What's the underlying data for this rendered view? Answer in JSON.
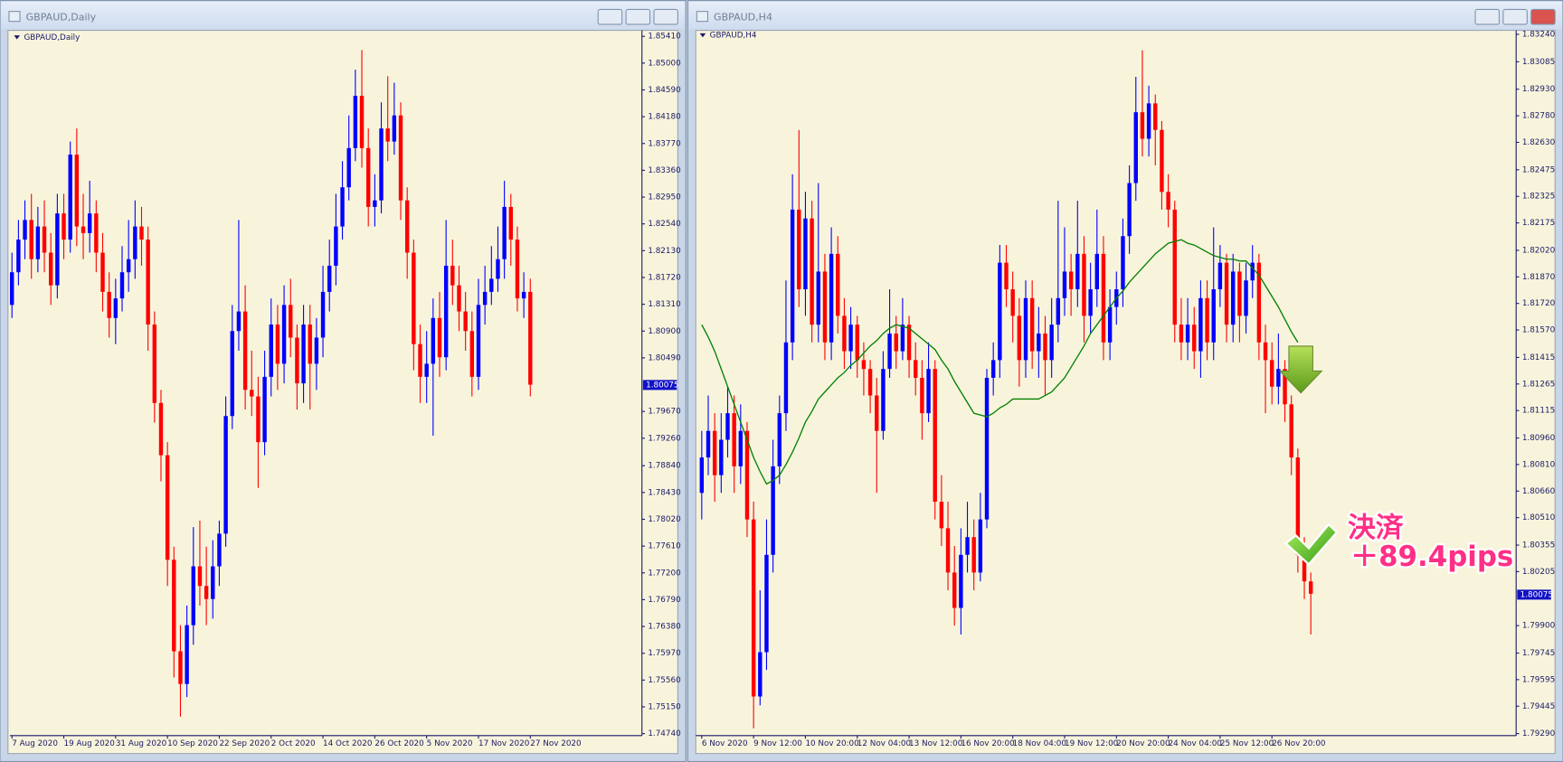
{
  "chart_data": [
    {
      "type": "candlestick",
      "window_title": "GBPAUD,Daily",
      "title": "GBPAUD,Daily",
      "up_color": "#0000ff",
      "down_color": "#ff0000",
      "open": [
        1.813,
        1.818,
        1.823,
        1.826,
        1.82,
        1.825,
        1.821,
        1.816,
        1.827,
        1.823,
        1.836,
        1.825,
        1.824,
        1.827,
        1.821,
        1.815,
        1.811,
        1.814,
        1.818,
        1.82,
        1.825,
        1.823,
        1.81,
        1.798,
        1.79,
        1.774,
        1.76,
        1.755,
        1.764,
        1.773,
        1.77,
        1.768,
        1.773,
        1.778,
        1.796,
        1.809,
        1.812,
        1.8,
        1.799,
        1.792,
        1.802,
        1.81,
        1.804,
        1.813,
        1.808,
        1.801,
        1.81,
        1.804,
        1.808,
        1.815,
        1.819,
        1.825,
        1.831,
        1.837,
        1.845,
        1.837,
        1.828,
        1.829,
        1.84,
        1.838,
        1.842,
        1.829,
        1.821,
        1.807,
        1.802,
        1.804,
        1.811,
        1.805,
        1.819,
        1.816,
        1.812,
        1.809,
        1.802,
        1.813,
        1.815,
        1.817,
        1.82,
        1.828,
        1.823,
        1.814,
        1.815
      ],
      "high": [
        1.821,
        1.826,
        1.829,
        1.83,
        1.828,
        1.829,
        1.824,
        1.83,
        1.83,
        1.838,
        1.84,
        1.83,
        1.832,
        1.829,
        1.824,
        1.818,
        1.817,
        1.822,
        1.826,
        1.829,
        1.828,
        1.825,
        1.812,
        1.8,
        1.792,
        1.776,
        1.764,
        1.767,
        1.779,
        1.78,
        1.776,
        1.777,
        1.78,
        1.799,
        1.813,
        1.826,
        1.816,
        1.806,
        1.802,
        1.806,
        1.814,
        1.813,
        1.816,
        1.817,
        1.81,
        1.813,
        1.813,
        1.811,
        1.819,
        1.823,
        1.83,
        1.835,
        1.842,
        1.849,
        1.852,
        1.84,
        1.833,
        1.844,
        1.848,
        1.847,
        1.844,
        1.831,
        1.823,
        1.81,
        1.809,
        1.814,
        1.815,
        1.826,
        1.823,
        1.819,
        1.815,
        1.812,
        1.817,
        1.819,
        1.822,
        1.825,
        1.832,
        1.83,
        1.825,
        1.818,
        1.817
      ],
      "low": [
        1.811,
        1.816,
        1.82,
        1.817,
        1.818,
        1.818,
        1.813,
        1.814,
        1.82,
        1.821,
        1.822,
        1.82,
        1.821,
        1.818,
        1.812,
        1.808,
        1.807,
        1.812,
        1.815,
        1.817,
        1.819,
        1.806,
        1.795,
        1.786,
        1.77,
        1.756,
        1.75,
        1.753,
        1.761,
        1.767,
        1.764,
        1.765,
        1.77,
        1.776,
        1.794,
        1.806,
        1.797,
        1.796,
        1.785,
        1.79,
        1.799,
        1.8,
        1.801,
        1.805,
        1.797,
        1.798,
        1.797,
        1.8,
        1.805,
        1.812,
        1.816,
        1.823,
        1.829,
        1.835,
        1.834,
        1.825,
        1.825,
        1.827,
        1.835,
        1.836,
        1.826,
        1.817,
        1.803,
        1.798,
        1.798,
        1.793,
        1.802,
        1.803,
        1.813,
        1.809,
        1.806,
        1.799,
        1.8,
        1.81,
        1.813,
        1.815,
        1.817,
        1.819,
        1.812,
        1.811,
        1.799
      ],
      "close": [
        1.818,
        1.823,
        1.826,
        1.82,
        1.825,
        1.821,
        1.816,
        1.827,
        1.823,
        1.836,
        1.825,
        1.824,
        1.827,
        1.821,
        1.815,
        1.811,
        1.814,
        1.818,
        1.82,
        1.825,
        1.823,
        1.81,
        1.798,
        1.79,
        1.774,
        1.76,
        1.755,
        1.764,
        1.773,
        1.77,
        1.768,
        1.773,
        1.778,
        1.796,
        1.809,
        1.812,
        1.8,
        1.799,
        1.792,
        1.802,
        1.81,
        1.804,
        1.813,
        1.808,
        1.801,
        1.81,
        1.804,
        1.808,
        1.815,
        1.819,
        1.825,
        1.831,
        1.837,
        1.845,
        1.837,
        1.828,
        1.829,
        1.84,
        1.838,
        1.842,
        1.829,
        1.821,
        1.807,
        1.802,
        1.804,
        1.811,
        1.805,
        1.819,
        1.816,
        1.812,
        1.809,
        1.802,
        1.813,
        1.815,
        1.817,
        1.82,
        1.828,
        1.823,
        1.814,
        1.815,
        1.8008
      ],
      "ylim": [
        1.7474,
        1.8541
      ],
      "yticks": [
        {
          "value": 1.8541,
          "label": "1.85410"
        },
        {
          "value": 1.85,
          "label": "1.85000"
        },
        {
          "value": 1.8459,
          "label": "1.84590"
        },
        {
          "value": 1.8418,
          "label": "1.84180"
        },
        {
          "value": 1.8377,
          "label": "1.83770"
        },
        {
          "value": 1.8336,
          "label": "1.83360"
        },
        {
          "value": 1.8295,
          "label": "1.82950"
        },
        {
          "value": 1.8254,
          "label": "1.82540"
        },
        {
          "value": 1.8213,
          "label": "1.82130"
        },
        {
          "value": 1.8172,
          "label": "1.81720"
        },
        {
          "value": 1.8131,
          "label": "1.81310"
        },
        {
          "value": 1.809,
          "label": "1.80900"
        },
        {
          "value": 1.8049,
          "label": "1.80490"
        },
        {
          "value": 1.7967,
          "label": "1.79670"
        },
        {
          "value": 1.7926,
          "label": "1.79260"
        },
        {
          "value": 1.7884,
          "label": "1.78840"
        },
        {
          "value": 1.7843,
          "label": "1.78430"
        },
        {
          "value": 1.7802,
          "label": "1.78020"
        },
        {
          "value": 1.7761,
          "label": "1.77610"
        },
        {
          "value": 1.772,
          "label": "1.77200"
        },
        {
          "value": 1.7679,
          "label": "1.76790"
        },
        {
          "value": 1.7638,
          "label": "1.76380"
        },
        {
          "value": 1.7597,
          "label": "1.75970"
        },
        {
          "value": 1.7556,
          "label": "1.75560"
        },
        {
          "value": 1.7515,
          "label": "1.75150"
        },
        {
          "value": 1.7474,
          "label": "1.74740"
        }
      ],
      "xticks": [
        {
          "value": 0,
          "label": "7 Aug 2020"
        },
        {
          "value": 8,
          "label": "19 Aug 2020"
        },
        {
          "value": 16,
          "label": "31 Aug 2020"
        },
        {
          "value": 24,
          "label": "10 Sep 2020"
        },
        {
          "value": 32,
          "label": "22 Sep 2020"
        },
        {
          "value": 40,
          "label": "2 Oct 2020"
        },
        {
          "value": 48,
          "label": "14 Oct 2020"
        },
        {
          "value": 56,
          "label": "26 Oct 2020"
        },
        {
          "value": 64,
          "label": "5 Nov 2020"
        },
        {
          "value": 72,
          "label": "17 Nov 2020"
        },
        {
          "value": 80,
          "label": "27 Nov 2020"
        }
      ],
      "current_price": 1.80075
    },
    {
      "type": "candlestick",
      "window_title": "GBPAUD,H4",
      "title": "GBPAUD,H4",
      "up_color": "#0000ff",
      "down_color": "#ff0000",
      "open": [
        1.8065,
        1.8085,
        1.81,
        1.8075,
        1.8095,
        1.811,
        1.808,
        1.81,
        1.805,
        1.795,
        1.7975,
        1.803,
        1.808,
        1.811,
        1.815,
        1.8225,
        1.818,
        1.822,
        1.816,
        1.819,
        1.815,
        1.82,
        1.8165,
        1.8145,
        1.816,
        1.814,
        1.8135,
        1.812,
        1.81,
        1.8135,
        1.8155,
        1.8145,
        1.816,
        1.814,
        1.813,
        1.811,
        1.8135,
        1.806,
        1.8045,
        1.802,
        1.8,
        1.803,
        1.804,
        1.802,
        1.805,
        1.813,
        1.814,
        1.8195,
        1.818,
        1.8165,
        1.814,
        1.8175,
        1.8145,
        1.8155,
        1.814,
        1.816,
        1.8175,
        1.819,
        1.818,
        1.82,
        1.8165,
        1.818,
        1.82,
        1.815,
        1.817,
        1.818,
        1.821,
        1.824,
        1.828,
        1.8265,
        1.8285,
        1.827,
        1.8235,
        1.8225,
        1.816,
        1.815,
        1.816,
        1.8145,
        1.8175,
        1.815,
        1.818,
        1.8195,
        1.816,
        1.819,
        1.8165,
        1.8185,
        1.8195,
        1.815,
        1.814,
        1.8125,
        1.8135,
        1.8115,
        1.8085,
        1.803,
        1.8015
      ],
      "high": [
        1.81,
        1.812,
        1.811,
        1.811,
        1.8125,
        1.812,
        1.8115,
        1.8105,
        1.806,
        1.801,
        1.805,
        1.8095,
        1.812,
        1.8185,
        1.8245,
        1.827,
        1.8235,
        1.823,
        1.824,
        1.82,
        1.8215,
        1.821,
        1.8175,
        1.817,
        1.8165,
        1.815,
        1.814,
        1.813,
        1.8145,
        1.818,
        1.8165,
        1.8175,
        1.8165,
        1.815,
        1.814,
        1.815,
        1.814,
        1.8075,
        1.806,
        1.8035,
        1.8045,
        1.806,
        1.805,
        1.8065,
        1.8135,
        1.815,
        1.8205,
        1.8205,
        1.819,
        1.8175,
        1.8185,
        1.8185,
        1.817,
        1.8165,
        1.8175,
        1.823,
        1.8215,
        1.82,
        1.823,
        1.821,
        1.8195,
        1.8225,
        1.821,
        1.818,
        1.819,
        1.822,
        1.825,
        1.83,
        1.8315,
        1.8295,
        1.829,
        1.8275,
        1.8245,
        1.823,
        1.8175,
        1.8175,
        1.817,
        1.8185,
        1.8185,
        1.8215,
        1.8205,
        1.82,
        1.82,
        1.8195,
        1.8195,
        1.8205,
        1.82,
        1.816,
        1.815,
        1.8155,
        1.814,
        1.812,
        1.809,
        1.804,
        1.802
      ],
      "low": [
        1.805,
        1.8075,
        1.806,
        1.8065,
        1.8085,
        1.8065,
        1.807,
        1.804,
        1.7932,
        1.7945,
        1.7965,
        1.802,
        1.807,
        1.81,
        1.814,
        1.817,
        1.8165,
        1.815,
        1.815,
        1.814,
        1.814,
        1.8155,
        1.8135,
        1.8135,
        1.813,
        1.812,
        1.811,
        1.8065,
        1.8095,
        1.813,
        1.8135,
        1.814,
        1.813,
        1.812,
        1.8095,
        1.8105,
        1.805,
        1.8035,
        1.801,
        1.799,
        1.7985,
        1.802,
        1.801,
        1.8015,
        1.8045,
        1.812,
        1.813,
        1.817,
        1.815,
        1.8125,
        1.813,
        1.8135,
        1.813,
        1.812,
        1.813,
        1.815,
        1.8165,
        1.8165,
        1.817,
        1.815,
        1.8155,
        1.817,
        1.814,
        1.814,
        1.816,
        1.817,
        1.82,
        1.823,
        1.8255,
        1.8255,
        1.825,
        1.8225,
        1.8215,
        1.815,
        1.814,
        1.814,
        1.8135,
        1.813,
        1.814,
        1.814,
        1.817,
        1.815,
        1.815,
        1.815,
        1.8155,
        1.8175,
        1.814,
        1.811,
        1.8115,
        1.8115,
        1.8105,
        1.8075,
        1.802,
        1.8005,
        1.7985
      ],
      "close": [
        1.8085,
        1.81,
        1.8075,
        1.8095,
        1.811,
        1.808,
        1.81,
        1.805,
        1.795,
        1.7975,
        1.803,
        1.808,
        1.811,
        1.815,
        1.8225,
        1.818,
        1.822,
        1.816,
        1.819,
        1.815,
        1.82,
        1.8165,
        1.8145,
        1.816,
        1.814,
        1.8135,
        1.812,
        1.81,
        1.8135,
        1.8155,
        1.8145,
        1.816,
        1.814,
        1.813,
        1.811,
        1.8135,
        1.806,
        1.8045,
        1.802,
        1.8,
        1.803,
        1.804,
        1.802,
        1.805,
        1.813,
        1.814,
        1.8195,
        1.818,
        1.8165,
        1.814,
        1.8175,
        1.8145,
        1.8155,
        1.814,
        1.816,
        1.8175,
        1.819,
        1.818,
        1.82,
        1.8165,
        1.818,
        1.82,
        1.815,
        1.817,
        1.818,
        1.821,
        1.824,
        1.828,
        1.8265,
        1.8285,
        1.827,
        1.8235,
        1.8225,
        1.816,
        1.815,
        1.816,
        1.8145,
        1.8175,
        1.815,
        1.818,
        1.8195,
        1.816,
        1.819,
        1.8165,
        1.8185,
        1.8195,
        1.815,
        1.814,
        1.8125,
        1.8135,
        1.8115,
        1.8085,
        1.803,
        1.8015,
        1.8008
      ],
      "ma_line": {
        "color": "#008000",
        "values": [
          1.816,
          1.8153,
          1.8145,
          1.8135,
          1.8125,
          1.8115,
          1.8105,
          1.8095,
          1.8085,
          1.8077,
          1.807,
          1.8072,
          1.8075,
          1.8081,
          1.8088,
          1.8096,
          1.8105,
          1.8111,
          1.8118,
          1.8122,
          1.8126,
          1.813,
          1.8133,
          1.8137,
          1.814,
          1.8144,
          1.8148,
          1.8151,
          1.8155,
          1.8158,
          1.816,
          1.8159,
          1.8158,
          1.8155,
          1.8152,
          1.8149,
          1.8146,
          1.814,
          1.8135,
          1.8128,
          1.8122,
          1.8116,
          1.811,
          1.8109,
          1.8108,
          1.811,
          1.8113,
          1.8115,
          1.8118,
          1.8118,
          1.8118,
          1.8118,
          1.8118,
          1.812,
          1.8122,
          1.8126,
          1.813,
          1.8136,
          1.8142,
          1.8148,
          1.8155,
          1.816,
          1.8165,
          1.817,
          1.8175,
          1.8179,
          1.8184,
          1.8188,
          1.8192,
          1.8196,
          1.82,
          1.8203,
          1.8206,
          1.8207,
          1.8208,
          1.8206,
          1.8205,
          1.8203,
          1.8201,
          1.8199,
          1.8198,
          1.8197,
          1.8197,
          1.8196,
          1.8196,
          1.8192,
          1.8188,
          1.8182,
          1.8176,
          1.817,
          1.8163,
          1.8156,
          1.815,
          null,
          null
        ]
      },
      "ylim": [
        1.7929,
        1.8324
      ],
      "yticks": [
        {
          "value": 1.8324,
          "label": "1.83240"
        },
        1.83085,
        {
          "value": 1.8293,
          "label": "1.82930"
        },
        {
          "value": 1.8278,
          "label": "1.82780"
        },
        {
          "value": 1.8263,
          "label": "1.82630"
        },
        1.82475,
        1.82325,
        1.82175,
        {
          "value": 1.8202,
          "label": "1.82020"
        },
        {
          "value": 1.8187,
          "label": "1.81870"
        },
        {
          "value": 1.8172,
          "label": "1.81720"
        },
        {
          "value": 1.8157,
          "label": "1.81570"
        },
        1.81415,
        1.81265,
        1.81115,
        {
          "value": 1.8096,
          "label": "1.80960"
        },
        {
          "value": 1.8081,
          "label": "1.80810"
        },
        {
          "value": 1.8066,
          "label": "1.80660"
        },
        {
          "value": 1.8051,
          "label": "1.80510"
        },
        1.80355,
        1.80205,
        {
          "value": 1.799,
          "label": "1.79900"
        },
        1.79745,
        1.79595,
        1.79445,
        {
          "value": 1.7929,
          "label": "1.79290"
        }
      ],
      "xticks": [
        {
          "value": 0,
          "label": "6 Nov 2020"
        },
        {
          "value": 8,
          "label": "9 Nov 12:00"
        },
        {
          "value": 16,
          "label": "10 Nov 20:00"
        },
        {
          "value": 24,
          "label": "12 Nov 04:00"
        },
        {
          "value": 32,
          "label": "13 Nov 12:00"
        },
        {
          "value": 40,
          "label": "16 Nov 20:00"
        },
        {
          "value": 48,
          "label": "18 Nov 04:00"
        },
        {
          "value": 56,
          "label": "19 Nov 12:00"
        },
        {
          "value": 64,
          "label": "20 Nov 20:00"
        },
        {
          "value": 72,
          "label": "24 Nov 04:00"
        },
        {
          "value": 80,
          "label": "25 Nov 12:00"
        },
        {
          "value": 88,
          "label": "26 Nov 20:00"
        }
      ],
      "current_price": 1.80075,
      "annotations": [
        "決済",
        "＋89.4pips"
      ]
    }
  ]
}
